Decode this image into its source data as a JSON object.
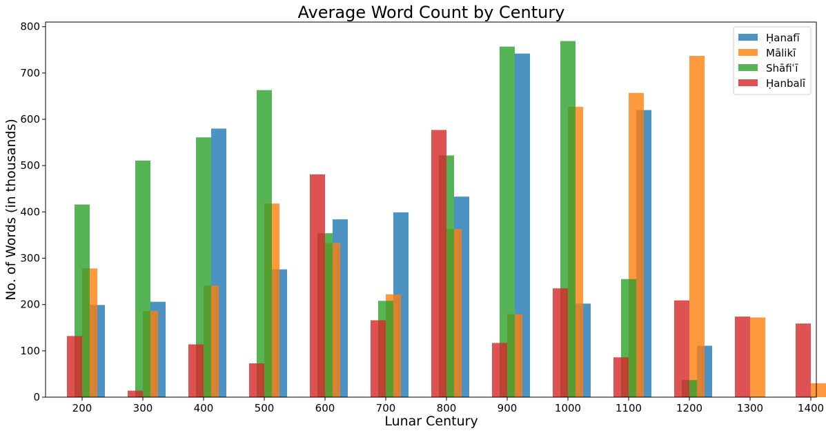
{
  "chart_data": {
    "type": "bar",
    "title": "Average Word Count by Century",
    "xlabel": "Lunar Century",
    "ylabel": "No. of Words (in thousands)",
    "categories": [
      "200",
      "300",
      "400",
      "500",
      "600",
      "700",
      "800",
      "900",
      "1000",
      "1100",
      "1200",
      "1300",
      "1400"
    ],
    "ylim": [
      0,
      800
    ],
    "yticks": [
      0,
      100,
      200,
      300,
      400,
      500,
      600,
      700,
      800
    ],
    "grid": false,
    "legend_position": "top-right",
    "series": [
      {
        "name": "Ḥanafī",
        "color": "#1f77b4",
        "values": [
          199,
          206,
          580,
          276,
          384,
          399,
          433,
          742,
          202,
          620,
          111,
          null,
          null
        ]
      },
      {
        "name": "Mālikī",
        "color": "#ff7f0e",
        "values": [
          278,
          186,
          241,
          418,
          333,
          222,
          363,
          179,
          627,
          657,
          737,
          172,
          30
        ]
      },
      {
        "name": "Shāfiʿī",
        "color": "#2ca02c",
        "values": [
          416,
          511,
          561,
          663,
          354,
          208,
          522,
          757,
          769,
          255,
          37,
          null,
          null
        ]
      },
      {
        "name": "Ḥanbalī",
        "color": "#d62728",
        "values": [
          132,
          14,
          114,
          73,
          481,
          166,
          577,
          117,
          235,
          86,
          209,
          174,
          159
        ]
      }
    ]
  }
}
